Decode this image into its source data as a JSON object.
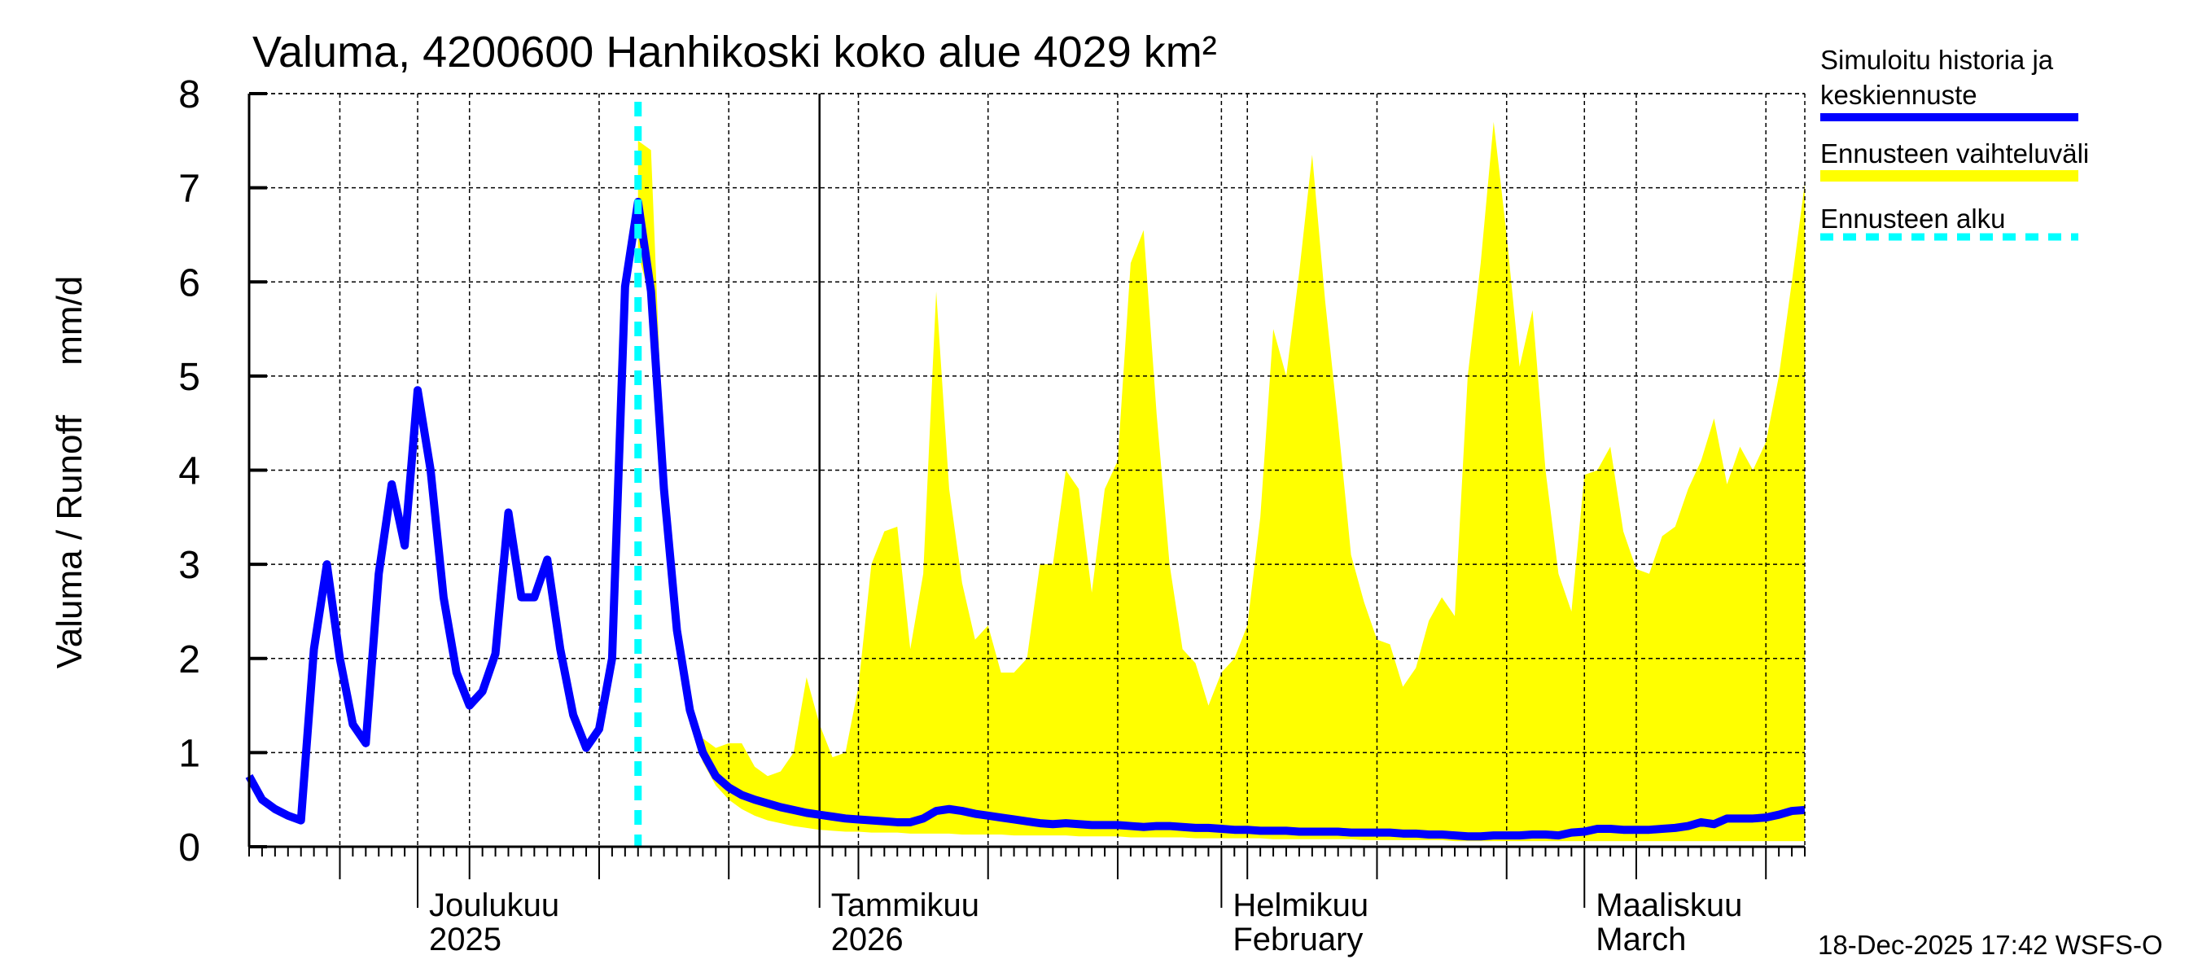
{
  "chart_data": {
    "type": "area",
    "title": "Valuma, 4200600 Hanhikoski koko alue 4029 km²",
    "ylabel": "Valuma / Runoff     mm/d",
    "xlabel": "",
    "ylim": [
      0,
      8
    ],
    "yticks": [
      "0",
      "1",
      "2",
      "3",
      "4",
      "5",
      "6",
      "7",
      "8"
    ],
    "x_start_date": "2025-11-18",
    "x_days": 121,
    "forecast_start_index": 30,
    "grid": true,
    "legend_position": "right",
    "month_labels": [
      {
        "day_index": 13,
        "line1": "Joulukuu",
        "line2": "2025"
      },
      {
        "day_index": 44,
        "line1": "Tammikuu",
        "line2": "2026"
      },
      {
        "day_index": 75,
        "line1": "Helmikuu",
        "line2": "February"
      },
      {
        "day_index": 103,
        "line1": "Maaliskuu",
        "line2": "March"
      }
    ],
    "series": [
      {
        "name": "Simuloitu historia ja keskiennuste",
        "color": "#0000ff",
        "start_index": 0,
        "values": [
          0.75,
          0.5,
          0.4,
          0.33,
          0.28,
          2.1,
          3.0,
          2.0,
          1.3,
          1.1,
          2.9,
          3.85,
          3.2,
          4.85,
          4.0,
          2.65,
          1.85,
          1.5,
          1.65,
          2.05,
          3.55,
          2.65,
          2.65,
          3.05,
          2.1,
          1.4,
          1.05,
          1.25,
          2.0,
          5.95,
          6.85,
          5.9,
          3.8,
          2.3,
          1.45,
          1.0,
          0.75,
          0.63,
          0.55,
          0.5,
          0.46,
          0.42,
          0.39,
          0.36,
          0.34,
          0.32,
          0.3,
          0.29,
          0.28,
          0.27,
          0.26,
          0.26,
          0.3,
          0.38,
          0.4,
          0.38,
          0.35,
          0.33,
          0.31,
          0.29,
          0.27,
          0.25,
          0.24,
          0.25,
          0.24,
          0.23,
          0.23,
          0.23,
          0.22,
          0.21,
          0.22,
          0.22,
          0.21,
          0.2,
          0.2,
          0.19,
          0.18,
          0.18,
          0.17,
          0.17,
          0.17,
          0.16,
          0.16,
          0.16,
          0.16,
          0.15,
          0.15,
          0.15,
          0.15,
          0.14,
          0.14,
          0.13,
          0.13,
          0.12,
          0.11,
          0.11,
          0.12,
          0.12,
          0.12,
          0.13,
          0.13,
          0.12,
          0.15,
          0.16,
          0.19,
          0.19,
          0.18,
          0.18,
          0.18,
          0.19,
          0.2,
          0.22,
          0.26,
          0.24,
          0.3,
          0.3,
          0.3,
          0.31,
          0.34,
          0.38,
          0.39
        ]
      },
      {
        "name": "Ennusteen vaihteluväli",
        "color": "#ffff00",
        "start_index": 30,
        "upper": [
          7.5,
          7.4,
          4.0,
          2.5,
          1.5,
          1.15,
          1.05,
          1.1,
          1.1,
          0.85,
          0.75,
          0.8,
          1.0,
          1.8,
          1.3,
          0.95,
          1.0,
          1.7,
          3.0,
          3.35,
          3.4,
          2.1,
          2.9,
          5.9,
          3.8,
          2.8,
          2.2,
          2.35,
          1.85,
          1.85,
          2.0,
          3.0,
          3.0,
          4.0,
          3.8,
          2.7,
          3.8,
          4.1,
          6.2,
          6.55,
          4.6,
          3.0,
          2.1,
          1.95,
          1.5,
          1.85,
          2.0,
          2.35,
          3.5,
          5.5,
          5.0,
          6.1,
          7.35,
          5.8,
          4.5,
          3.1,
          2.6,
          2.2,
          2.15,
          1.7,
          1.9,
          2.4,
          2.65,
          2.45,
          5.0,
          6.2,
          7.7,
          6.5,
          5.1,
          5.7,
          4.0,
          2.9,
          2.5,
          3.95,
          4.0,
          4.25,
          3.35,
          2.95,
          2.9,
          3.3,
          3.4,
          3.8,
          4.1,
          4.55,
          3.85,
          4.25,
          4.0,
          4.3,
          5.0,
          6.0,
          7.05
        ],
        "lower": [
          6.3,
          5.8,
          3.6,
          2.2,
          1.3,
          0.9,
          0.65,
          0.5,
          0.4,
          0.33,
          0.28,
          0.25,
          0.22,
          0.2,
          0.18,
          0.17,
          0.16,
          0.16,
          0.15,
          0.15,
          0.15,
          0.14,
          0.14,
          0.14,
          0.14,
          0.13,
          0.13,
          0.13,
          0.13,
          0.12,
          0.12,
          0.12,
          0.12,
          0.12,
          0.11,
          0.11,
          0.11,
          0.11,
          0.1,
          0.1,
          0.1,
          0.1,
          0.1,
          0.09,
          0.09,
          0.09,
          0.09,
          0.09,
          0.09,
          0.08,
          0.08,
          0.08,
          0.08,
          0.08,
          0.08,
          0.08,
          0.07,
          0.07,
          0.07,
          0.07,
          0.07,
          0.07,
          0.07,
          0.06,
          0.06,
          0.06,
          0.06,
          0.06,
          0.06,
          0.06,
          0.06,
          0.06,
          0.06,
          0.06,
          0.06,
          0.06,
          0.06,
          0.06,
          0.06,
          0.06,
          0.06,
          0.06,
          0.06,
          0.06,
          0.06,
          0.06,
          0.06,
          0.06,
          0.06,
          0.06,
          0.06
        ]
      },
      {
        "name": "Ennusteen alku",
        "color": "#00ffff"
      }
    ]
  },
  "legend": {
    "item1_line1": "Simuloitu historia ja",
    "item1_line2": "keskiennuste",
    "item2": "Ennusteen vaihteluväli",
    "item3": "Ennusteen alku"
  },
  "footer": "18-Dec-2025 17:42 WSFS-O"
}
